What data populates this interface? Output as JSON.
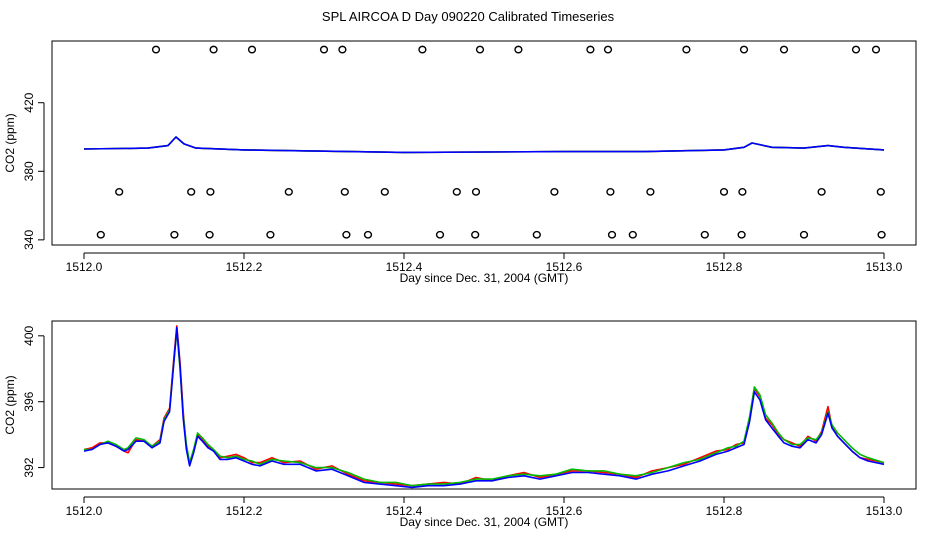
{
  "title": "SPL AIRCOA D  Day 090220  Calibrated Timeseries",
  "colors": {
    "series1": "#ff0000",
    "series2": "#00bb00",
    "series3": "#0000ff",
    "axis": "#000000",
    "markers": "#000000"
  },
  "chart_data": [
    {
      "type": "scatter+line",
      "title": "",
      "xlabel": "Day since Dec. 31, 2004 (GMT)",
      "ylabel": "CO2 (ppm)",
      "xlim": [
        1511.96,
        1513.04
      ],
      "ylim": [
        337,
        456
      ],
      "x_ticks": [
        1512.0,
        1512.2,
        1512.4,
        1512.6,
        1512.8,
        1513.0
      ],
      "x_tick_labels": [
        "1512.0",
        "1512.2",
        "1512.4",
        "1512.6",
        "1512.8",
        "1513.0"
      ],
      "y_ticks": [
        340,
        380,
        420
      ],
      "y_tick_labels": [
        "340",
        "380",
        "420"
      ],
      "markers": {
        "symbol": "open-circle",
        "rows": [
          {
            "y": 451,
            "x": [
              1512.09,
              1512.162,
              1512.21,
              1512.3,
              1512.323,
              1512.423,
              1512.495,
              1512.543,
              1512.633,
              1512.655,
              1512.753,
              1512.825,
              1512.875,
              1512.965,
              1512.99
            ]
          },
          {
            "y": 368,
            "x": [
              1512.044,
              1512.134,
              1512.158,
              1512.256,
              1512.326,
              1512.376,
              1512.466,
              1512.49,
              1512.588,
              1512.658,
              1512.708,
              1512.8,
              1512.823,
              1512.922,
              1512.996
            ]
          },
          {
            "y": 343,
            "x": [
              1512.021,
              1512.113,
              1512.157,
              1512.233,
              1512.328,
              1512.355,
              1512.445,
              1512.489,
              1512.566,
              1512.66,
              1512.686,
              1512.776,
              1512.822,
              1512.9,
              1512.997
            ]
          }
        ]
      },
      "series": [
        {
          "name": "red",
          "x": [
            1512.0,
            1512.08,
            1512.105,
            1512.115,
            1512.125,
            1512.14,
            1512.2,
            1512.4,
            1512.6,
            1512.7,
            1512.8,
            1512.825,
            1512.835,
            1512.86,
            1512.9,
            1512.93,
            1512.95,
            1513.0
          ],
          "y": [
            393,
            393.5,
            395,
            400,
            396,
            393.5,
            392.5,
            391,
            391.5,
            391.5,
            392.5,
            394,
            396.5,
            394,
            393.5,
            395,
            394,
            392.5
          ]
        },
        {
          "name": "green",
          "x": [
            1512.0,
            1512.08,
            1512.105,
            1512.115,
            1512.125,
            1512.14,
            1512.2,
            1512.4,
            1512.6,
            1512.7,
            1512.8,
            1512.825,
            1512.835,
            1512.86,
            1512.9,
            1512.93,
            1512.95,
            1513.0
          ],
          "y": [
            393,
            393.5,
            395,
            400,
            396,
            393.5,
            392.5,
            391,
            391.5,
            391.5,
            392.5,
            394,
            396.5,
            394,
            393.5,
            395,
            394,
            392.5
          ]
        },
        {
          "name": "blue",
          "x": [
            1512.0,
            1512.08,
            1512.105,
            1512.115,
            1512.125,
            1512.14,
            1512.2,
            1512.4,
            1512.6,
            1512.7,
            1512.8,
            1512.825,
            1512.835,
            1512.86,
            1512.9,
            1512.93,
            1512.95,
            1513.0
          ],
          "y": [
            393,
            393.5,
            395,
            400,
            396,
            393.5,
            392.5,
            391,
            391.5,
            391.5,
            392.5,
            394,
            396.5,
            394,
            393.5,
            395,
            394,
            392.5
          ]
        }
      ]
    },
    {
      "type": "line",
      "title": "",
      "xlabel": "Day since Dec. 31, 2004 (GMT)",
      "ylabel": "CO2 (ppm)",
      "xlim": [
        1511.96,
        1513.04
      ],
      "ylim": [
        390.7,
        400.9
      ],
      "x_ticks": [
        1512.0,
        1512.2,
        1512.4,
        1512.6,
        1512.8,
        1513.0
      ],
      "x_tick_labels": [
        "1512.0",
        "1512.2",
        "1512.4",
        "1512.6",
        "1512.8",
        "1513.0"
      ],
      "y_ticks": [
        392,
        396,
        400
      ],
      "y_tick_labels": [
        "392",
        "396",
        "400"
      ],
      "series": [
        {
          "name": "red",
          "x": [
            1512.0,
            1512.01,
            1512.02,
            1512.03,
            1512.04,
            1512.05,
            1512.055,
            1512.065,
            1512.075,
            1512.085,
            1512.095,
            1512.1,
            1512.107,
            1512.112,
            1512.116,
            1512.12,
            1512.124,
            1512.128,
            1512.132,
            1512.137,
            1512.142,
            1512.148,
            1512.155,
            1512.162,
            1512.17,
            1512.18,
            1512.19,
            1512.2,
            1512.21,
            1512.22,
            1512.235,
            1512.25,
            1512.27,
            1512.29,
            1512.31,
            1512.33,
            1512.35,
            1512.37,
            1512.39,
            1512.41,
            1512.43,
            1512.45,
            1512.47,
            1512.49,
            1512.51,
            1512.53,
            1512.55,
            1512.57,
            1512.59,
            1512.61,
            1512.63,
            1512.65,
            1512.67,
            1512.69,
            1512.71,
            1512.73,
            1512.75,
            1512.77,
            1512.79,
            1512.805,
            1512.815,
            1512.825,
            1512.832,
            1512.838,
            1512.845,
            1512.852,
            1512.86,
            1512.868,
            1512.875,
            1512.885,
            1512.895,
            1512.905,
            1512.915,
            1512.922,
            1512.93,
            1512.935,
            1512.942,
            1512.95,
            1512.96,
            1512.97,
            1512.98,
            1513.0
          ],
          "y": [
            393.1,
            393.2,
            393.5,
            393.5,
            393.3,
            393.0,
            392.9,
            393.7,
            393.6,
            393.3,
            393.7,
            395.0,
            395.6,
            398.5,
            400.6,
            398.4,
            395.4,
            393.2,
            392.2,
            393.0,
            394.0,
            393.7,
            393.3,
            393.0,
            392.6,
            392.7,
            392.8,
            392.6,
            392.3,
            392.3,
            392.6,
            392.3,
            392.4,
            391.9,
            392.1,
            391.6,
            391.2,
            391.1,
            391.0,
            390.9,
            391.0,
            391.1,
            391.0,
            391.4,
            391.2,
            391.5,
            391.7,
            391.4,
            391.6,
            391.8,
            391.8,
            391.7,
            391.6,
            391.4,
            391.8,
            392.0,
            392.2,
            392.6,
            393.0,
            393.1,
            393.4,
            393.5,
            395.0,
            396.8,
            396.3,
            395.0,
            394.6,
            394.0,
            393.7,
            393.5,
            393.3,
            393.9,
            393.6,
            394.2,
            395.7,
            394.5,
            393.9,
            393.5,
            393.0,
            392.6,
            392.5,
            392.3
          ]
        },
        {
          "name": "green",
          "x": [
            1512.0,
            1512.01,
            1512.02,
            1512.03,
            1512.04,
            1512.05,
            1512.055,
            1512.065,
            1512.075,
            1512.085,
            1512.095,
            1512.1,
            1512.107,
            1512.112,
            1512.116,
            1512.12,
            1512.124,
            1512.128,
            1512.132,
            1512.137,
            1512.142,
            1512.148,
            1512.155,
            1512.162,
            1512.17,
            1512.18,
            1512.19,
            1512.2,
            1512.21,
            1512.22,
            1512.235,
            1512.25,
            1512.27,
            1512.29,
            1512.31,
            1512.33,
            1512.35,
            1512.37,
            1512.39,
            1512.41,
            1512.43,
            1512.45,
            1512.47,
            1512.49,
            1512.51,
            1512.53,
            1512.55,
            1512.57,
            1512.59,
            1512.61,
            1512.63,
            1512.65,
            1512.67,
            1512.69,
            1512.71,
            1512.73,
            1512.75,
            1512.77,
            1512.79,
            1512.805,
            1512.815,
            1512.825,
            1512.832,
            1512.838,
            1512.845,
            1512.852,
            1512.86,
            1512.868,
            1512.875,
            1512.885,
            1512.895,
            1512.905,
            1512.915,
            1512.922,
            1512.93,
            1512.935,
            1512.942,
            1512.95,
            1512.96,
            1512.97,
            1512.98,
            1513.0
          ],
          "y": [
            393.1,
            393.1,
            393.4,
            393.6,
            393.4,
            393.1,
            393.2,
            393.8,
            393.7,
            393.3,
            393.6,
            394.9,
            395.5,
            398.3,
            400.3,
            398.0,
            395.2,
            393.4,
            392.3,
            393.1,
            394.1,
            393.8,
            393.4,
            393.1,
            392.7,
            392.6,
            392.7,
            392.5,
            392.4,
            392.2,
            392.5,
            392.4,
            392.3,
            392.0,
            392.0,
            391.7,
            391.3,
            391.1,
            391.1,
            390.9,
            391.0,
            391.0,
            391.1,
            391.3,
            391.3,
            391.5,
            391.6,
            391.5,
            391.6,
            391.9,
            391.8,
            391.8,
            391.6,
            391.5,
            391.7,
            392.0,
            392.3,
            392.5,
            392.9,
            393.2,
            393.3,
            393.6,
            395.1,
            396.9,
            396.4,
            395.2,
            394.7,
            394.1,
            393.7,
            393.4,
            393.4,
            393.8,
            393.7,
            394.1,
            395.4,
            394.6,
            394.1,
            393.7,
            393.2,
            392.8,
            392.6,
            392.3
          ]
        },
        {
          "name": "blue",
          "x": [
            1512.0,
            1512.01,
            1512.02,
            1512.03,
            1512.04,
            1512.05,
            1512.055,
            1512.065,
            1512.075,
            1512.085,
            1512.095,
            1512.1,
            1512.107,
            1512.112,
            1512.116,
            1512.12,
            1512.124,
            1512.128,
            1512.132,
            1512.137,
            1512.142,
            1512.148,
            1512.155,
            1512.162,
            1512.17,
            1512.18,
            1512.19,
            1512.2,
            1512.21,
            1512.22,
            1512.235,
            1512.25,
            1512.27,
            1512.29,
            1512.31,
            1512.33,
            1512.35,
            1512.37,
            1512.39,
            1512.41,
            1512.43,
            1512.45,
            1512.47,
            1512.49,
            1512.51,
            1512.53,
            1512.55,
            1512.57,
            1512.59,
            1512.61,
            1512.63,
            1512.65,
            1512.67,
            1512.69,
            1512.71,
            1512.73,
            1512.75,
            1512.77,
            1512.79,
            1512.805,
            1512.815,
            1512.825,
            1512.832,
            1512.838,
            1512.845,
            1512.852,
            1512.86,
            1512.868,
            1512.875,
            1512.885,
            1512.895,
            1512.905,
            1512.915,
            1512.922,
            1512.93,
            1512.935,
            1512.942,
            1512.95,
            1512.96,
            1512.97,
            1512.98,
            1513.0
          ],
          "y": [
            393.0,
            393.1,
            393.4,
            393.5,
            393.3,
            393.0,
            393.1,
            393.6,
            393.6,
            393.2,
            393.5,
            394.8,
            395.4,
            398.2,
            400.5,
            398.2,
            395.0,
            393.1,
            392.1,
            392.9,
            393.9,
            393.6,
            393.2,
            393.0,
            392.5,
            392.5,
            392.6,
            392.4,
            392.2,
            392.1,
            392.4,
            392.2,
            392.2,
            391.8,
            391.9,
            391.5,
            391.1,
            391.0,
            390.9,
            390.8,
            390.9,
            390.9,
            391.0,
            391.2,
            391.2,
            391.4,
            391.5,
            391.3,
            391.5,
            391.7,
            391.7,
            391.6,
            391.5,
            391.3,
            391.6,
            391.8,
            392.1,
            392.4,
            392.8,
            393.0,
            393.2,
            393.4,
            394.8,
            396.6,
            396.1,
            394.9,
            394.4,
            393.9,
            393.5,
            393.3,
            393.2,
            393.7,
            393.5,
            394.0,
            395.3,
            394.4,
            393.9,
            393.5,
            393.0,
            392.6,
            392.4,
            392.2
          ]
        }
      ]
    }
  ]
}
